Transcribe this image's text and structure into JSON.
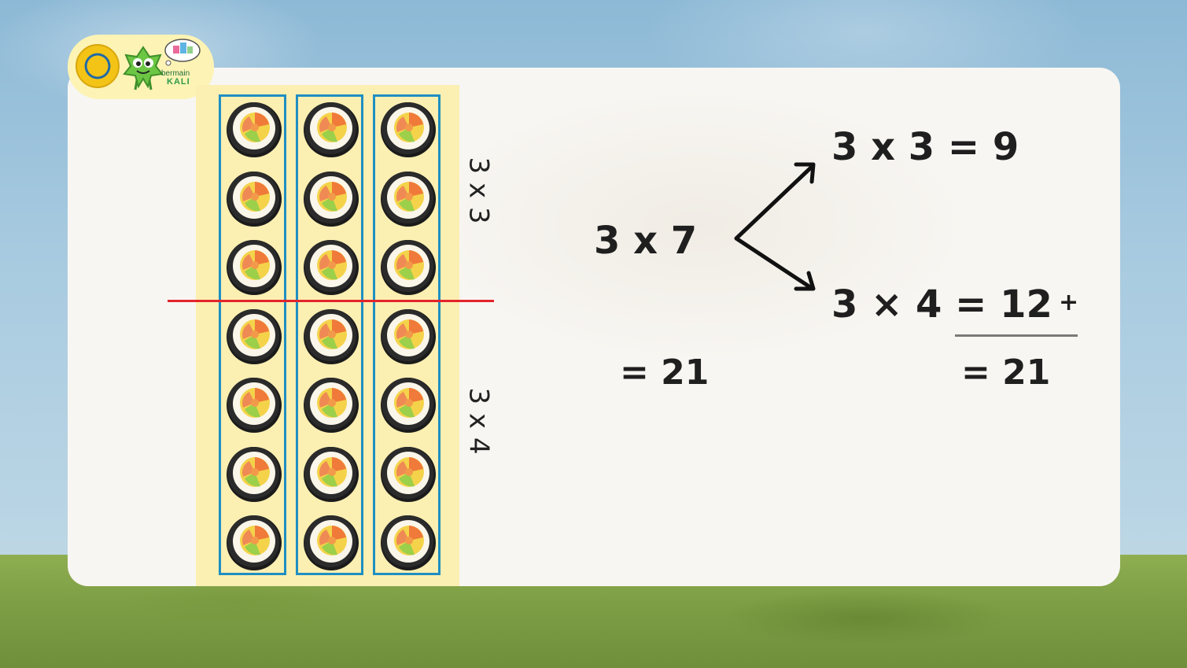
{
  "brand": {
    "line1": "bermain",
    "line2": "KALI",
    "badge_color": "#fdf3b4"
  },
  "array": {
    "rows": 7,
    "columns": 3,
    "split_after_row": 3,
    "column_border_color": "#1f8fc2",
    "split_line_color": "#e3242b"
  },
  "labels": {
    "top_group": "3 x 3",
    "bottom_group": "3 x 4"
  },
  "equations": {
    "main": "3 x 7",
    "main_result": "= 21",
    "part1": "3 x 3 = 9",
    "part2": "3 × 4 = 12",
    "plus_sign": "+",
    "sum_result": "= 21"
  }
}
